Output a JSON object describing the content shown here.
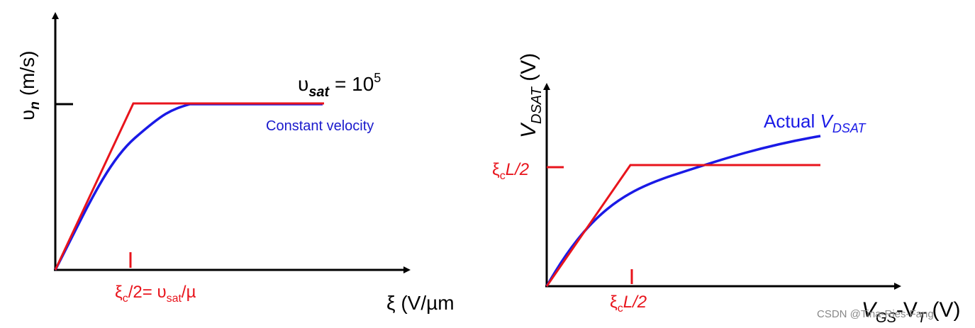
{
  "left_panel": {
    "y_axis_label": {
      "main": "υ",
      "sub": "n",
      "unit": " (m/s)"
    },
    "x_axis_label": "ξ (V/µm",
    "vsat_label": {
      "main": "υ",
      "sub": "sat",
      "eq": " = 10",
      "sup": "5"
    },
    "constant_velocity": "Constant velocity",
    "xc_label": {
      "main": "ξ",
      "sub1": "c",
      "mid": "/2= υ",
      "sub2": "sat",
      "end": "/µ"
    }
  },
  "right_panel": {
    "y_axis_label": {
      "main": "V",
      "sub": "DSAT",
      "unit": " (V)"
    },
    "x_axis_label": {
      "v1": "V",
      "sub1": "GS",
      "dash": "-V",
      "sub2": "T",
      "unit": " (V)"
    },
    "actual_label": {
      "main": "Actual ",
      "v": "V",
      "sub": "DSAT"
    },
    "y_tick_label": {
      "main": "ξ",
      "sub": "c",
      "end": "L/2"
    },
    "x_tick_label": {
      "main": "ξ",
      "sub": "c",
      "end": "L/2"
    }
  },
  "watermark": "CSDN @Tina-Ries-Fang",
  "colors": {
    "axis": "#000000",
    "red": "#e8141c",
    "blue": "#1a1ae6",
    "label_blue": "#1a1acc",
    "watermark": "#888888"
  }
}
